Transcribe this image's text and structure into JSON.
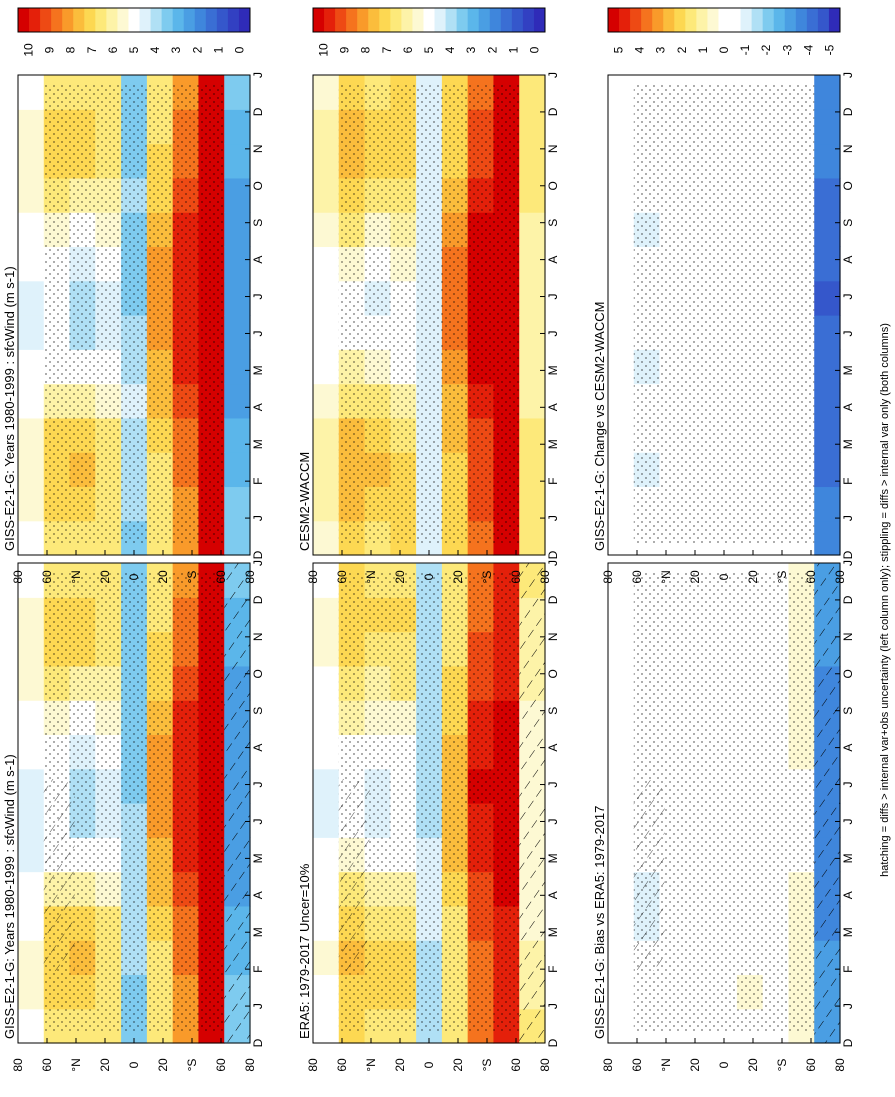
{
  "footnote": "hatching = diffs > internal var+obs uncertainty (left column only); stippling = diffs > internal var only (both columns)",
  "months": [
    "D",
    "J",
    "F",
    "M",
    "A",
    "M",
    "J",
    "J",
    "A",
    "S",
    "O",
    "N",
    "D",
    "J"
  ],
  "lat_labels": [
    "80",
    "60",
    "°N",
    "20",
    "0",
    "20",
    "°S",
    "60",
    "80"
  ],
  "colorbars": {
    "absolute": {
      "labels": [
        "10",
        "9",
        "8",
        "7",
        "6",
        "5",
        "4",
        "3",
        "2",
        "1",
        "0"
      ]
    },
    "difference": {
      "labels": [
        "5",
        "4",
        "3",
        "2",
        "1",
        "0",
        "-1",
        "-2",
        "-3",
        "-4",
        "-5"
      ]
    }
  },
  "colors": {
    "abs_scale": [
      "#d50000",
      "#e4200a",
      "#ee4a14",
      "#f5731e",
      "#f99a2a",
      "#fbbd3c",
      "#fdd852",
      "#fde97a",
      "#fdf3a8",
      "#fdf9d3",
      "#ffffff",
      "#dff2fb",
      "#b0e0f5",
      "#7ecbef",
      "#5bb6ea",
      "#4a9ee3",
      "#3f86dc",
      "#3a6ed4",
      "#3557cb",
      "#3240c2",
      "#2f2bb8"
    ],
    "diff_scale": [
      "#d50000",
      "#e4200a",
      "#ee4a14",
      "#f5731e",
      "#f99a2a",
      "#fbbd3c",
      "#fdd852",
      "#fde97a",
      "#fdf3a8",
      "#fdf9d3",
      "#ffffff",
      "#ffffff",
      "#dff2fb",
      "#b0e0f5",
      "#7ecbef",
      "#5bb6ea",
      "#4a9ee3",
      "#3f86dc",
      "#3a6ed4",
      "#3557cb",
      "#2f2bb8"
    ]
  },
  "chart_data": [
    {
      "type": "heatmap",
      "title": "GISS-E2-1-G: Years 1980-1999 : sfcWind (m s-1)",
      "variable": "sfcWind",
      "units": "m s-1",
      "x": [
        "D",
        "J",
        "F",
        "M",
        "A",
        "M",
        "J",
        "J",
        "A",
        "S",
        "O",
        "N",
        "D",
        "J"
      ],
      "y": [
        "80N",
        "60N",
        "40N",
        "20N",
        "0",
        "20S",
        "40S",
        "60S",
        "80S"
      ],
      "zlim": [
        0,
        10
      ],
      "hatching": true,
      "stippling": true,
      "values": [
        [
          5.0,
          5.5,
          5.6,
          5.2,
          4.8,
          4.5,
          4.4,
          4.5,
          4.8,
          5.0,
          5.4,
          5.6,
          5.6,
          5.0
        ],
        [
          6.5,
          7.0,
          7.0,
          6.8,
          6.0,
          5.0,
          4.8,
          4.8,
          5.0,
          5.5,
          6.2,
          6.8,
          6.8,
          6.5
        ],
        [
          6.5,
          7.0,
          7.2,
          6.7,
          6.0,
          5.0,
          4.0,
          4.0,
          4.5,
          5.0,
          6.0,
          6.8,
          7.0,
          6.5
        ],
        [
          6.3,
          6.5,
          6.5,
          6.2,
          5.5,
          4.8,
          4.5,
          4.5,
          4.8,
          5.3,
          6.0,
          6.3,
          6.5,
          6.3
        ],
        [
          3.8,
          3.8,
          4.0,
          4.2,
          4.2,
          4.2,
          4.0,
          3.8,
          3.8,
          3.8,
          3.8,
          3.8,
          3.8,
          3.8
        ],
        [
          6.5,
          6.5,
          6.5,
          6.8,
          7.2,
          7.6,
          8.0,
          8.0,
          7.8,
          7.5,
          7.0,
          6.8,
          6.5,
          6.5
        ],
        [
          8.0,
          8.0,
          8.2,
          8.5,
          8.8,
          9.2,
          9.4,
          9.5,
          9.4,
          9.2,
          8.8,
          8.5,
          8.2,
          8.0
        ],
        [
          9.6,
          9.6,
          9.6,
          9.8,
          9.8,
          10.0,
          10.0,
          10.0,
          10.0,
          9.8,
          9.8,
          9.6,
          9.6,
          9.6
        ],
        [
          3.5,
          3.5,
          3.2,
          3.0,
          2.8,
          2.6,
          2.5,
          2.4,
          2.5,
          2.6,
          2.8,
          3.0,
          3.2,
          3.5
        ]
      ]
    },
    {
      "type": "heatmap",
      "title": "GISS-E2-1-G: Years 1980-1999 : sfcWind (m s-1)",
      "variable": "sfcWind",
      "units": "m s-1",
      "x": [
        "D",
        "J",
        "F",
        "M",
        "A",
        "M",
        "J",
        "J",
        "A",
        "S",
        "O",
        "N",
        "D",
        "J"
      ],
      "y": [
        "80N",
        "60N",
        "40N",
        "20N",
        "0",
        "20S",
        "40S",
        "60S",
        "80S"
      ],
      "zlim": [
        0,
        10
      ],
      "hatching": false,
      "stippling": true,
      "values": [
        [
          5.2,
          5.4,
          5.6,
          5.4,
          5.0,
          4.8,
          4.6,
          4.7,
          4.9,
          5.1,
          5.4,
          5.6,
          5.6,
          5.2
        ],
        [
          6.5,
          6.9,
          7.0,
          6.7,
          6.0,
          5.2,
          4.8,
          4.8,
          5.1,
          5.6,
          6.2,
          6.7,
          6.8,
          6.5
        ],
        [
          6.4,
          7.0,
          7.2,
          6.8,
          6.0,
          5.0,
          4.2,
          4.0,
          4.5,
          5.1,
          6.0,
          6.7,
          7.0,
          6.4
        ],
        [
          6.3,
          6.5,
          6.5,
          6.2,
          5.5,
          4.8,
          4.5,
          4.4,
          4.8,
          5.3,
          6.0,
          6.3,
          6.5,
          6.3
        ],
        [
          3.8,
          3.9,
          4.0,
          4.2,
          4.3,
          4.2,
          4.0,
          3.8,
          3.8,
          3.8,
          3.9,
          3.8,
          3.8,
          3.8
        ],
        [
          6.5,
          6.5,
          6.5,
          6.8,
          7.2,
          7.6,
          8.0,
          8.0,
          7.8,
          7.4,
          7.0,
          6.8,
          6.5,
          6.5
        ],
        [
          8.0,
          8.0,
          8.2,
          8.5,
          8.8,
          9.2,
          9.4,
          9.5,
          9.4,
          9.2,
          8.8,
          8.5,
          8.2,
          8.0
        ],
        [
          9.6,
          9.6,
          9.7,
          9.8,
          9.9,
          10.0,
          10.0,
          10.0,
          10.0,
          9.9,
          9.8,
          9.6,
          9.6,
          9.6
        ],
        [
          3.5,
          3.4,
          3.2,
          3.0,
          2.8,
          2.6,
          2.5,
          2.4,
          2.5,
          2.6,
          2.8,
          3.0,
          3.2,
          3.5
        ]
      ]
    },
    {
      "type": "heatmap",
      "title": "ERA5: 1979-2017 Uncer=10%",
      "variable": "sfcWind",
      "units": "m s-1",
      "x": [
        "D",
        "J",
        "F",
        "M",
        "A",
        "M",
        "J",
        "J",
        "A",
        "S",
        "O",
        "N",
        "D",
        "J"
      ],
      "y": [
        "80N",
        "60N",
        "40N",
        "20N",
        "0",
        "20S",
        "40S",
        "60S",
        "80S"
      ],
      "zlim": [
        0,
        10
      ],
      "hatching": true,
      "stippling": true,
      "values": [
        [
          5.0,
          5.2,
          5.4,
          5.2,
          5.0,
          4.8,
          4.6,
          4.6,
          4.8,
          5.0,
          5.2,
          5.4,
          5.4,
          5.0
        ],
        [
          6.8,
          7.0,
          7.2,
          6.8,
          6.2,
          5.4,
          5.0,
          5.0,
          5.2,
          5.8,
          6.4,
          6.9,
          7.0,
          6.8
        ],
        [
          6.4,
          6.8,
          7.0,
          6.6,
          5.8,
          5.0,
          4.6,
          4.6,
          5.0,
          5.4,
          6.0,
          6.6,
          6.8,
          6.4
        ],
        [
          6.5,
          6.8,
          6.8,
          6.4,
          5.8,
          5.0,
          4.8,
          4.8,
          5.0,
          5.5,
          6.2,
          6.5,
          6.7,
          6.5
        ],
        [
          4.0,
          4.0,
          4.2,
          4.4,
          4.4,
          4.3,
          4.2,
          4.0,
          4.0,
          4.0,
          4.0,
          4.0,
          4.0,
          4.0
        ],
        [
          6.2,
          6.3,
          6.4,
          6.6,
          7.0,
          7.3,
          7.6,
          7.6,
          7.4,
          7.1,
          6.8,
          6.5,
          6.3,
          6.2
        ],
        [
          8.2,
          8.2,
          8.4,
          8.6,
          9.0,
          9.3,
          9.5,
          9.6,
          9.5,
          9.3,
          8.9,
          8.6,
          8.3,
          8.2
        ],
        [
          9.2,
          9.2,
          9.3,
          9.5,
          9.6,
          9.8,
          9.8,
          9.8,
          9.8,
          9.6,
          9.5,
          9.3,
          9.2,
          9.2
        ],
        [
          6.2,
          6.0,
          5.8,
          5.6,
          5.5,
          5.4,
          5.4,
          5.4,
          5.5,
          5.6,
          5.8,
          6.0,
          6.1,
          6.2
        ]
      ]
    },
    {
      "type": "heatmap",
      "title": "CESM2-WACCM",
      "variable": "sfcWind",
      "units": "m s-1",
      "x": [
        "D",
        "J",
        "F",
        "M",
        "A",
        "M",
        "J",
        "J",
        "A",
        "S",
        "O",
        "N",
        "D",
        "J"
      ],
      "y": [
        "80N",
        "60N",
        "40N",
        "20N",
        "0",
        "20S",
        "40S",
        "60S",
        "80S"
      ],
      "zlim": [
        0,
        10
      ],
      "hatching": false,
      "stippling": true,
      "values": [
        [
          5.6,
          5.8,
          6.0,
          5.8,
          5.4,
          5.0,
          4.8,
          4.8,
          5.0,
          5.4,
          5.8,
          6.0,
          6.0,
          5.6
        ],
        [
          7.0,
          7.4,
          7.6,
          7.2,
          6.6,
          5.8,
          5.2,
          5.2,
          5.6,
          6.2,
          6.8,
          7.2,
          7.4,
          7.0
        ],
        [
          6.6,
          7.0,
          7.2,
          7.0,
          6.4,
          5.4,
          4.8,
          4.6,
          5.0,
          5.6,
          6.3,
          6.8,
          7.0,
          6.6
        ],
        [
          6.8,
          7.0,
          7.0,
          6.6,
          6.0,
          5.2,
          5.0,
          5.0,
          5.4,
          5.8,
          6.4,
          6.8,
          7.0,
          6.8
        ],
        [
          4.4,
          4.4,
          4.6,
          4.6,
          4.6,
          4.4,
          4.4,
          4.4,
          4.4,
          4.4,
          4.4,
          4.4,
          4.4,
          4.4
        ],
        [
          6.8,
          6.8,
          7.0,
          7.2,
          7.6,
          8.0,
          8.4,
          8.4,
          8.2,
          7.8,
          7.4,
          7.0,
          6.8,
          6.8
        ],
        [
          8.4,
          8.6,
          8.8,
          9.0,
          9.4,
          9.6,
          9.8,
          9.9,
          9.8,
          9.6,
          9.2,
          8.8,
          8.6,
          8.4
        ],
        [
          9.6,
          9.6,
          9.8,
          9.8,
          10.0,
          10.0,
          10.0,
          10.0,
          10.0,
          10.0,
          9.8,
          9.8,
          9.6,
          9.6
        ],
        [
          6.6,
          6.6,
          6.4,
          6.2,
          6.0,
          5.8,
          5.8,
          5.8,
          5.8,
          6.0,
          6.2,
          6.4,
          6.6,
          6.6
        ]
      ]
    },
    {
      "type": "heatmap",
      "title": "GISS-E2-1-G: Bias vs ERA5: 1979-2017",
      "variable": "sfcWind",
      "units": "m s-1",
      "x": [
        "D",
        "J",
        "F",
        "M",
        "A",
        "M",
        "J",
        "J",
        "A",
        "S",
        "O",
        "N",
        "D",
        "J"
      ],
      "y": [
        "80N",
        "60N",
        "40N",
        "20N",
        "0",
        "20S",
        "40S",
        "60S",
        "80S"
      ],
      "zlim": [
        -5,
        5
      ],
      "hatching": true,
      "stippling": true,
      "values": [
        [
          0.0,
          -0.2,
          -0.2,
          -0.4,
          -0.4,
          -0.3,
          -0.2,
          0.0,
          0.0,
          0.0,
          0.0,
          -0.2,
          0.0,
          0.0
        ],
        [
          -0.4,
          -0.6,
          -0.5,
          -0.8,
          -0.8,
          -0.6,
          -0.2,
          -0.3,
          -0.2,
          -0.2,
          -0.3,
          -0.6,
          -0.5,
          -0.4
        ],
        [
          0.0,
          0.1,
          0.2,
          0.1,
          0.0,
          0.0,
          -0.2,
          -0.4,
          -0.3,
          0.0,
          0.0,
          0.1,
          0.2,
          0.0
        ],
        [
          -0.2,
          -0.3,
          -0.2,
          -0.2,
          -0.2,
          -0.1,
          -0.2,
          -0.3,
          -0.2,
          -0.3,
          -0.2,
          -0.2,
          -0.1,
          -0.2
        ],
        [
          -0.4,
          -0.6,
          -0.6,
          -0.4,
          -0.3,
          -0.2,
          -0.3,
          -0.4,
          -0.4,
          -0.5,
          -0.4,
          -0.4,
          -0.3,
          -0.4
        ],
        [
          0.2,
          0.4,
          0.2,
          0.1,
          0.1,
          0.0,
          0.1,
          0.1,
          0.0,
          0.0,
          0.1,
          0.2,
          0.2,
          0.2
        ],
        [
          -0.3,
          -0.4,
          -0.4,
          -0.3,
          -0.2,
          -0.2,
          -0.1,
          -0.1,
          -0.1,
          -0.2,
          -0.3,
          -0.3,
          -0.3,
          -0.3
        ],
        [
          0.6,
          0.7,
          0.5,
          0.4,
          0.3,
          0.2,
          0.2,
          0.2,
          0.3,
          0.3,
          0.4,
          0.5,
          0.6,
          0.6
        ],
        [
          -2.8,
          -2.9,
          -3.0,
          -3.2,
          -3.3,
          -3.4,
          -3.5,
          -3.5,
          -3.4,
          -3.3,
          -3.2,
          -3.0,
          -2.9,
          -2.8
        ]
      ]
    },
    {
      "type": "heatmap",
      "title": "GISS-E2-1-G: Change vs CESM2-WACCM",
      "variable": "sfcWind",
      "units": "m s-1",
      "x": [
        "D",
        "J",
        "F",
        "M",
        "A",
        "M",
        "J",
        "J",
        "A",
        "S",
        "O",
        "N",
        "D",
        "J"
      ],
      "y": [
        "80N",
        "60N",
        "40N",
        "20N",
        "0",
        "20S",
        "40S",
        "60S",
        "80S"
      ],
      "zlim": [
        -5,
        5
      ],
      "hatching": false,
      "stippling": true,
      "values": [
        [
          -0.6,
          -0.4,
          -0.4,
          -0.6,
          -0.6,
          -0.5,
          -0.4,
          -0.3,
          -0.2,
          -0.4,
          -0.5,
          -0.4,
          -0.4,
          -0.6
        ],
        [
          -0.6,
          -0.6,
          -0.8,
          -0.6,
          -0.6,
          -0.8,
          -0.6,
          -0.4,
          -0.6,
          -0.8,
          -0.6,
          -0.6,
          -0.6,
          -0.6
        ],
        [
          -0.2,
          -0.2,
          -0.2,
          -0.4,
          -0.4,
          -0.6,
          -0.4,
          -0.6,
          -0.6,
          -0.5,
          -0.3,
          -0.2,
          -0.2,
          -0.2
        ],
        [
          -0.5,
          -0.5,
          -0.5,
          -0.4,
          -0.5,
          -0.4,
          -0.5,
          -0.6,
          -0.6,
          -0.6,
          -0.4,
          -0.5,
          -0.5,
          -0.5
        ],
        [
          -0.6,
          -0.6,
          -0.6,
          -0.5,
          -0.4,
          -0.3,
          -0.4,
          -0.6,
          -0.6,
          -0.6,
          -0.6,
          -0.6,
          -0.6,
          -0.6
        ],
        [
          -0.3,
          -0.2,
          -0.4,
          -0.5,
          -0.5,
          -0.4,
          -0.4,
          -0.4,
          -0.4,
          -0.4,
          -0.3,
          -0.3,
          -0.3,
          -0.3
        ],
        [
          -0.4,
          -0.6,
          -0.6,
          -0.5,
          -0.6,
          -0.4,
          -0.4,
          -0.4,
          -0.4,
          -0.4,
          -0.4,
          -0.3,
          -0.4,
          -0.4
        ],
        [
          -0.2,
          -0.2,
          -0.2,
          -0.2,
          -0.2,
          -0.2,
          -0.1,
          -0.1,
          -0.2,
          -0.2,
          -0.2,
          -0.2,
          -0.2,
          -0.2
        ],
        [
          -3.2,
          -3.4,
          -3.6,
          -3.8,
          -3.9,
          -4.0,
          -4.0,
          -4.1,
          -4.0,
          -3.9,
          -3.7,
          -3.5,
          -3.3,
          -3.2
        ]
      ]
    }
  ]
}
